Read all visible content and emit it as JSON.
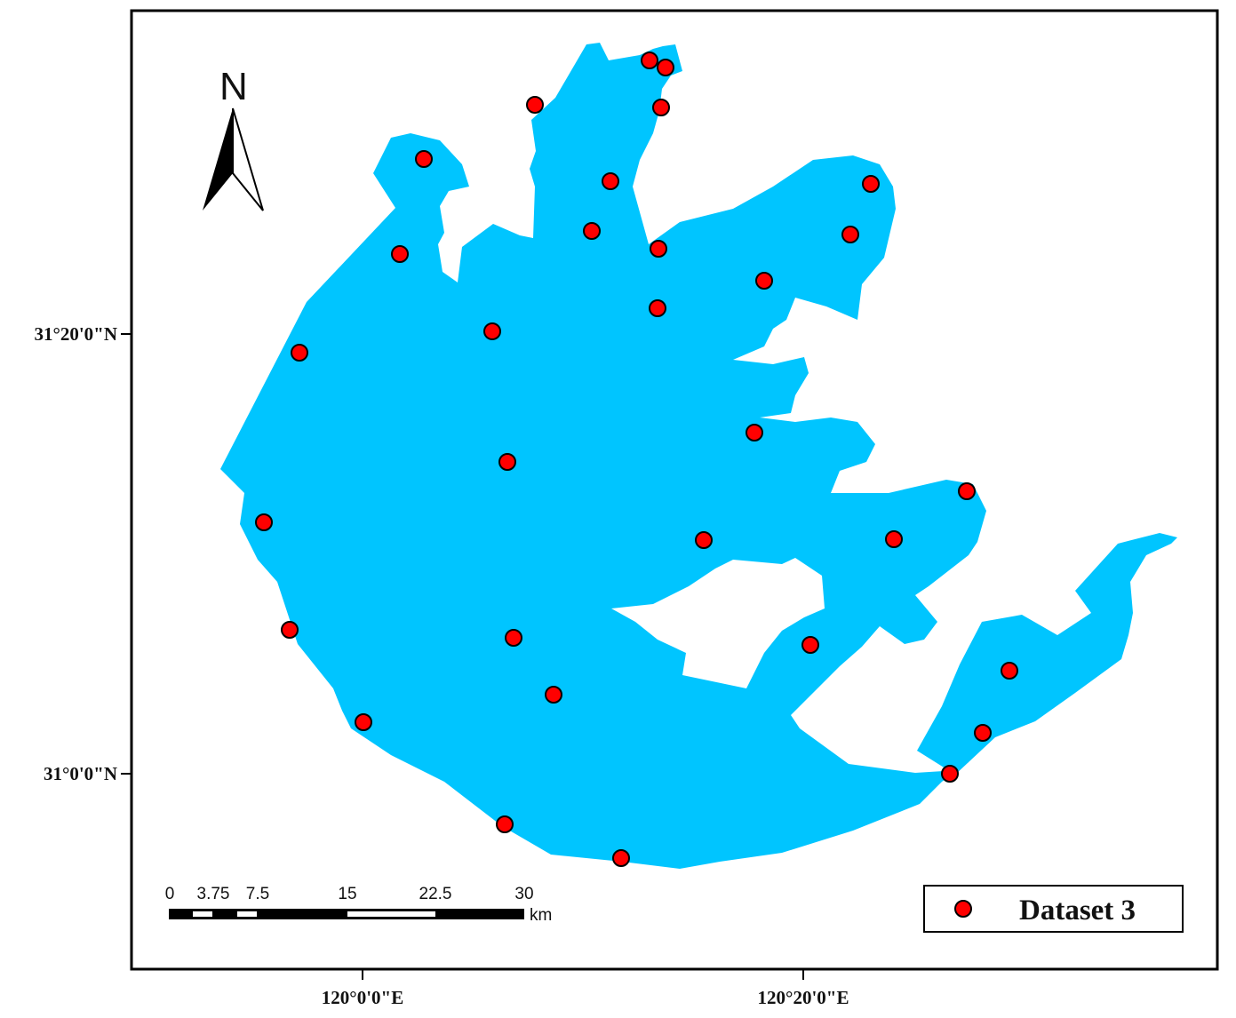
{
  "map": {
    "north_label": "N",
    "lat_labels": [
      "31°20'0\"N",
      "31°0'0\"N"
    ],
    "lon_labels": [
      "120°0'0\"E",
      "120°20'0\"E"
    ],
    "scale_bar": {
      "ticks": [
        "0",
        "3.75",
        "7.5",
        "15",
        "22.5",
        "30"
      ],
      "unit": "km"
    },
    "legend": {
      "label": "Dataset 3"
    },
    "colors": {
      "water": "#00c5ff",
      "points": "#ff0000",
      "frame": "#000000"
    }
  }
}
